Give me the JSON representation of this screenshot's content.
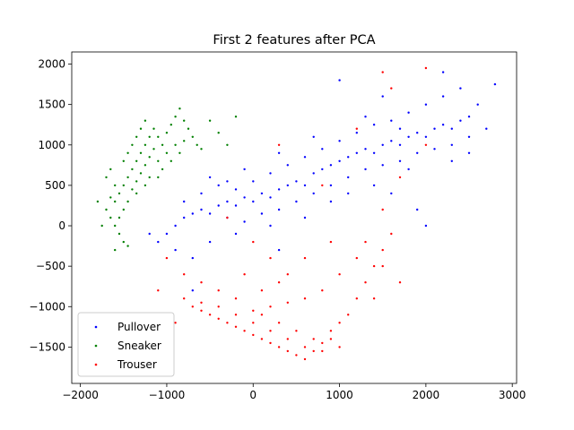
{
  "chart_data": {
    "type": "scatter",
    "title": "First 2 features after PCA",
    "xlabel": "",
    "ylabel": "",
    "xlim": [
      -2100,
      3050
    ],
    "ylim": [
      -1950,
      2150
    ],
    "xticks": [
      -2000,
      -1000,
      0,
      1000,
      2000,
      3000
    ],
    "xtick_labels": [
      "−2000",
      "−1000",
      "0",
      "1000",
      "2000",
      "3000"
    ],
    "yticks": [
      -1500,
      -1000,
      -500,
      0,
      500,
      1000,
      1500,
      2000
    ],
    "ytick_labels": [
      "−1500",
      "−1000",
      "−500",
      "0",
      "500",
      "1000",
      "1500",
      "2000"
    ],
    "grid": false,
    "legend_position": "lower-left",
    "series": [
      {
        "name": "Pullover",
        "color": "#0000ff",
        "marker": "dot",
        "points": [
          [
            -1100,
            -200
          ],
          [
            -1000,
            -100
          ],
          [
            -900,
            0
          ],
          [
            -800,
            100
          ],
          [
            -700,
            150
          ],
          [
            -600,
            200
          ],
          [
            -500,
            150
          ],
          [
            -400,
            250
          ],
          [
            -300,
            300
          ],
          [
            -200,
            250
          ],
          [
            -100,
            350
          ],
          [
            0,
            300
          ],
          [
            100,
            400
          ],
          [
            200,
            350
          ],
          [
            300,
            450
          ],
          [
            400,
            500
          ],
          [
            500,
            550
          ],
          [
            600,
            500
          ],
          [
            700,
            650
          ],
          [
            800,
            700
          ],
          [
            900,
            750
          ],
          [
            1000,
            800
          ],
          [
            1100,
            850
          ],
          [
            1200,
            900
          ],
          [
            1300,
            950
          ],
          [
            1400,
            900
          ],
          [
            1500,
            1000
          ],
          [
            1600,
            1050
          ],
          [
            1700,
            1000
          ],
          [
            1800,
            1100
          ],
          [
            1900,
            1150
          ],
          [
            2000,
            1100
          ],
          [
            2100,
            1200
          ],
          [
            2200,
            1250
          ],
          [
            2300,
            1200
          ],
          [
            2400,
            1300
          ],
          [
            2500,
            1350
          ],
          [
            -900,
            -300
          ],
          [
            -700,
            -400
          ],
          [
            -500,
            -200
          ],
          [
            -300,
            100
          ],
          [
            -100,
            50
          ],
          [
            100,
            150
          ],
          [
            300,
            200
          ],
          [
            500,
            300
          ],
          [
            700,
            400
          ],
          [
            900,
            500
          ],
          [
            1100,
            600
          ],
          [
            1300,
            700
          ],
          [
            1500,
            750
          ],
          [
            1700,
            800
          ],
          [
            1900,
            900
          ],
          [
            2100,
            950
          ],
          [
            2300,
            1000
          ],
          [
            2500,
            1100
          ],
          [
            2600,
            1500
          ],
          [
            2400,
            1700
          ],
          [
            2200,
            1600
          ],
          [
            2000,
            1500
          ],
          [
            1800,
            1400
          ],
          [
            1600,
            1300
          ],
          [
            1400,
            1250
          ],
          [
            1200,
            1150
          ],
          [
            1000,
            1050
          ],
          [
            800,
            950
          ],
          [
            600,
            850
          ],
          [
            400,
            750
          ],
          [
            200,
            650
          ],
          [
            0,
            550
          ],
          [
            -200,
            450
          ],
          [
            -400,
            500
          ],
          [
            -600,
            400
          ],
          [
            -800,
            300
          ],
          [
            1000,
            1800
          ],
          [
            1500,
            1600
          ],
          [
            2200,
            1900
          ],
          [
            2700,
            1200
          ],
          [
            2800,
            1750
          ],
          [
            1800,
            700
          ],
          [
            1400,
            500
          ],
          [
            1600,
            400
          ],
          [
            900,
            300
          ],
          [
            -200,
            -100
          ],
          [
            200,
            0
          ],
          [
            600,
            100
          ],
          [
            -700,
            -800
          ],
          [
            300,
            -300
          ],
          [
            -1200,
            -100
          ],
          [
            2000,
            0
          ],
          [
            1900,
            200
          ],
          [
            1100,
            400
          ],
          [
            2300,
            800
          ],
          [
            2500,
            900
          ],
          [
            1700,
            1200
          ],
          [
            1300,
            1350
          ],
          [
            700,
            1100
          ],
          [
            300,
            900
          ],
          [
            -100,
            700
          ],
          [
            -500,
            600
          ],
          [
            -300,
            550
          ]
        ]
      },
      {
        "name": "Sneaker",
        "color": "#008000",
        "marker": "dot",
        "points": [
          [
            -1600,
            0
          ],
          [
            -1550,
            100
          ],
          [
            -1500,
            200
          ],
          [
            -1600,
            300
          ],
          [
            -1550,
            400
          ],
          [
            -1500,
            500
          ],
          [
            -1450,
            600
          ],
          [
            -1400,
            700
          ],
          [
            -1350,
            800
          ],
          [
            -1300,
            900
          ],
          [
            -1250,
            1000
          ],
          [
            -1200,
            1100
          ],
          [
            -1450,
            300
          ],
          [
            -1400,
            450
          ],
          [
            -1350,
            550
          ],
          [
            -1300,
            650
          ],
          [
            -1250,
            750
          ],
          [
            -1200,
            850
          ],
          [
            -1150,
            950
          ],
          [
            -1600,
            500
          ],
          [
            -1650,
            350
          ],
          [
            -1700,
            200
          ],
          [
            -1650,
            100
          ],
          [
            -1550,
            -100
          ],
          [
            -1500,
            -200
          ],
          [
            -1600,
            -300
          ],
          [
            -1700,
            600
          ],
          [
            -1650,
            700
          ],
          [
            -1500,
            800
          ],
          [
            -1450,
            900
          ],
          [
            -1400,
            1000
          ],
          [
            -1350,
            1100
          ],
          [
            -1300,
            1200
          ],
          [
            -1250,
            1300
          ],
          [
            -1150,
            1200
          ],
          [
            -1100,
            1100
          ],
          [
            -1050,
            1000
          ],
          [
            -1000,
            1150
          ],
          [
            -950,
            1250
          ],
          [
            -900,
            1350
          ],
          [
            -850,
            1450
          ],
          [
            -800,
            1300
          ],
          [
            -750,
            1200
          ],
          [
            -700,
            1100
          ],
          [
            -650,
            1000
          ],
          [
            -600,
            950
          ],
          [
            -500,
            1300
          ],
          [
            -400,
            1150
          ],
          [
            -300,
            1000
          ],
          [
            -200,
            1350
          ],
          [
            -1100,
            800
          ],
          [
            -1050,
            700
          ],
          [
            -1000,
            900
          ],
          [
            -950,
            800
          ],
          [
            -900,
            1000
          ],
          [
            -850,
            900
          ],
          [
            -800,
            1050
          ],
          [
            -1800,
            300
          ],
          [
            -1750,
            0
          ],
          [
            -1450,
            -250
          ],
          [
            -1350,
            400
          ],
          [
            -1250,
            500
          ],
          [
            -1200,
            600
          ],
          [
            -1100,
            600
          ]
        ]
      },
      {
        "name": "Trouser",
        "color": "#ff0000",
        "marker": "dot",
        "points": [
          [
            -800,
            -900
          ],
          [
            -700,
            -1000
          ],
          [
            -600,
            -1050
          ],
          [
            -500,
            -1100
          ],
          [
            -400,
            -1150
          ],
          [
            -300,
            -1200
          ],
          [
            -200,
            -1250
          ],
          [
            -100,
            -1300
          ],
          [
            0,
            -1350
          ],
          [
            100,
            -1400
          ],
          [
            200,
            -1450
          ],
          [
            300,
            -1500
          ],
          [
            400,
            -1550
          ],
          [
            500,
            -1600
          ],
          [
            600,
            -1650
          ],
          [
            700,
            -1550
          ],
          [
            800,
            -1450
          ],
          [
            900,
            -1400
          ],
          [
            -600,
            -950
          ],
          [
            -400,
            -1000
          ],
          [
            -200,
            -1100
          ],
          [
            0,
            -1200
          ],
          [
            200,
            -1300
          ],
          [
            400,
            -1400
          ],
          [
            600,
            -1500
          ],
          [
            800,
            -1550
          ],
          [
            1000,
            -1500
          ],
          [
            100,
            -1100
          ],
          [
            300,
            -1200
          ],
          [
            500,
            -1300
          ],
          [
            700,
            -1400
          ],
          [
            900,
            -1300
          ],
          [
            1000,
            -1200
          ],
          [
            1100,
            -1100
          ],
          [
            1200,
            -900
          ],
          [
            1300,
            -700
          ],
          [
            1400,
            -500
          ],
          [
            1500,
            -300
          ],
          [
            1600,
            -100
          ],
          [
            1200,
            -400
          ],
          [
            1000,
            -600
          ],
          [
            800,
            -800
          ],
          [
            600,
            -900
          ],
          [
            400,
            -950
          ],
          [
            200,
            -1000
          ],
          [
            0,
            -1050
          ],
          [
            -200,
            -900
          ],
          [
            -400,
            -800
          ],
          [
            -600,
            -700
          ],
          [
            -800,
            -600
          ],
          [
            -1000,
            -400
          ],
          [
            -1100,
            -800
          ],
          [
            -900,
            -1200
          ],
          [
            1300,
            -200
          ],
          [
            1500,
            200
          ],
          [
            1700,
            600
          ],
          [
            2000,
            1000
          ],
          [
            1600,
            1700
          ],
          [
            1500,
            1900
          ],
          [
            2000,
            1950
          ],
          [
            -300,
            100
          ],
          [
            0,
            -200
          ],
          [
            200,
            -400
          ],
          [
            400,
            -600
          ],
          [
            600,
            -400
          ],
          [
            300,
            -700
          ],
          [
            100,
            -800
          ],
          [
            -100,
            -600
          ],
          [
            1500,
            -500
          ],
          [
            1700,
            -700
          ],
          [
            1400,
            -900
          ],
          [
            900,
            -200
          ],
          [
            800,
            500
          ],
          [
            300,
            1000
          ],
          [
            1200,
            1200
          ]
        ]
      }
    ]
  }
}
